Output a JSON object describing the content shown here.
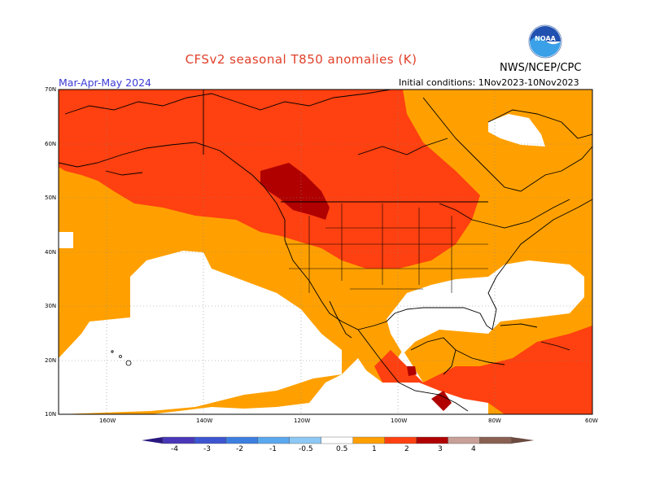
{
  "header": {
    "title": "CFSv2 seasonal T850 anomalies (K)",
    "org": "NWS/NCEP/CPC",
    "logo_text": "NOAA",
    "season": "Mar-Apr-May 2024",
    "initial_conditions": "Initial conditions: 1Nov2023-10Nov2023"
  },
  "map": {
    "lat_ticks": [
      "70N",
      "60N",
      "50N",
      "40N",
      "30N",
      "20N",
      "10N"
    ],
    "lon_ticks": [
      "160W",
      "140W",
      "120W",
      "100W",
      "80W",
      "60W"
    ],
    "lon_range": [
      -170,
      -60
    ],
    "lat_range": [
      10,
      70
    ]
  },
  "colorbar": {
    "labels": [
      "-4",
      "-3",
      "-2",
      "-1",
      "-0.5",
      "0.5",
      "1",
      "2",
      "3",
      "4"
    ],
    "colors": [
      "#4838b8",
      "#3d55d0",
      "#3d7fe0",
      "#5aa8ee",
      "#8ec8f4",
      "#ffffff",
      "#ffa000",
      "#ff4010",
      "#b00000",
      "#c8a098",
      "#8a6052"
    ]
  },
  "colors": {
    "white": "#ffffff",
    "orange_0_5_1": "#ffa000",
    "redorange_1_2": "#ff4010",
    "darkred_2_3": "#b00000",
    "title_red": "#e0402a",
    "season_blue": "#3b3bd6"
  }
}
